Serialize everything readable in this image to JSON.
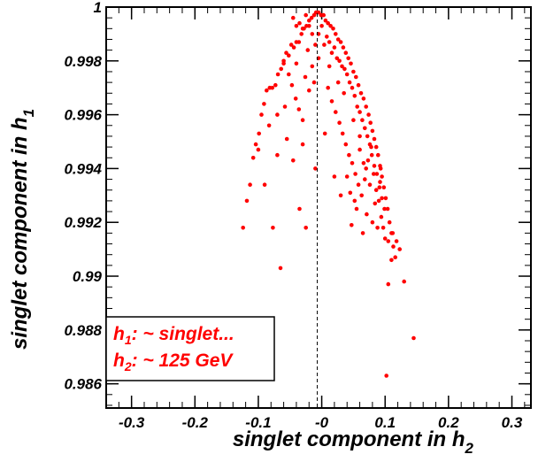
{
  "chart_data": {
    "type": "scatter",
    "xlabel": "singlet component in h",
    "xlabel_sub": "2",
    "ylabel": "singlet component in h",
    "ylabel_sub": "1",
    "xlim": [
      -0.34,
      0.33
    ],
    "ylim": [
      0.9851,
      1.0
    ],
    "xticks": [
      {
        "value": -0.3,
        "label": "-0.3"
      },
      {
        "value": -0.2,
        "label": "-0.2"
      },
      {
        "value": -0.1,
        "label": "-0.1"
      },
      {
        "value": -0.0,
        "label": "-0"
      },
      {
        "value": 0.1,
        "label": "0.1"
      },
      {
        "value": 0.2,
        "label": "0.2"
      },
      {
        "value": 0.3,
        "label": "0.3"
      }
    ],
    "yticks": [
      {
        "value": 0.986,
        "label": "0.986"
      },
      {
        "value": 0.988,
        "label": "0.988"
      },
      {
        "value": 0.99,
        "label": "0.99"
      },
      {
        "value": 0.992,
        "label": "0.992"
      },
      {
        "value": 0.994,
        "label": "0.994"
      },
      {
        "value": 0.996,
        "label": "0.996"
      },
      {
        "value": 0.998,
        "label": "0.998"
      },
      {
        "value": 1.0,
        "label": "1"
      }
    ],
    "reference_line": {
      "x": -0.007,
      "style": "dashed"
    },
    "marker_color": "#ff0000",
    "legend": {
      "placement": "bottom-left",
      "entries": [
        {
          "label": "h",
          "sub": "1",
          "text": ": ~ singlet..."
        },
        {
          "label": "h",
          "sub": "2",
          "text": ": ~ 125 GeV"
        }
      ]
    },
    "points": [
      [
        -0.124,
        0.9918
      ],
      [
        -0.118,
        0.9928
      ],
      [
        -0.113,
        0.9934
      ],
      [
        -0.108,
        0.9944
      ],
      [
        -0.104,
        0.9949
      ],
      [
        -0.099,
        0.9953
      ],
      [
        -0.095,
        0.996
      ],
      [
        -0.091,
        0.9964
      ],
      [
        -0.087,
        0.9969
      ],
      [
        -0.082,
        0.997
      ],
      [
        -0.078,
        0.997
      ],
      [
        -0.073,
        0.9971
      ],
      [
        -0.069,
        0.9975
      ],
      [
        -0.064,
        0.9977
      ],
      [
        -0.06,
        0.998
      ],
      [
        -0.056,
        0.9983
      ],
      [
        -0.052,
        0.9982
      ],
      [
        -0.048,
        0.9986
      ],
      [
        -0.044,
        0.9985
      ],
      [
        -0.04,
        0.9987
      ],
      [
        -0.036,
        0.9987
      ],
      [
        -0.032,
        0.999
      ],
      [
        -0.028,
        0.9992
      ],
      [
        -0.024,
        0.9993
      ],
      [
        -0.02,
        0.9995
      ],
      [
        -0.016,
        0.9996
      ],
      [
        -0.012,
        0.9997
      ],
      [
        -0.009,
        0.9998
      ],
      [
        -0.005,
        0.9998
      ],
      [
        -0.001,
        0.9997
      ],
      [
        0.003,
        0.9997
      ],
      [
        0.006,
        0.9995
      ],
      [
        0.01,
        0.9994
      ],
      [
        0.014,
        0.9993
      ],
      [
        0.018,
        0.9992
      ],
      [
        0.022,
        0.999
      ],
      [
        0.026,
        0.9988
      ],
      [
        0.03,
        0.9987
      ],
      [
        0.034,
        0.9985
      ],
      [
        0.038,
        0.9983
      ],
      [
        0.042,
        0.9981
      ],
      [
        0.046,
        0.9979
      ],
      [
        0.05,
        0.9976
      ],
      [
        0.054,
        0.9974
      ],
      [
        0.058,
        0.9971
      ],
      [
        0.062,
        0.9968
      ],
      [
        0.066,
        0.9966
      ],
      [
        0.07,
        0.9963
      ],
      [
        0.074,
        0.996
      ],
      [
        0.077,
        0.9957
      ],
      [
        0.08,
        0.9954
      ],
      [
        0.083,
        0.9951
      ],
      [
        0.086,
        0.9948
      ],
      [
        0.089,
        0.9945
      ],
      [
        0.092,
        0.9941
      ],
      [
        0.095,
        0.9937
      ],
      [
        0.098,
        0.9933
      ],
      [
        0.101,
        0.9929
      ],
      [
        0.104,
        0.9925
      ],
      [
        0.107,
        0.992
      ],
      [
        0.11,
        0.9916
      ],
      [
        0.113,
        0.9911
      ],
      [
        0.116,
        0.9907
      ],
      [
        -0.045,
        0.9996
      ],
      [
        -0.04,
        0.9993
      ],
      [
        -0.035,
        0.9994
      ],
      [
        -0.03,
        0.9992
      ],
      [
        -0.025,
        0.9997
      ],
      [
        -0.02,
        0.9993
      ],
      [
        -0.015,
        0.999
      ],
      [
        -0.01,
        0.9986
      ],
      [
        -0.005,
        0.999
      ],
      [
        0.0,
        0.9993
      ],
      [
        0.004,
        0.9986
      ],
      [
        0.008,
        0.9989
      ],
      [
        0.012,
        0.9987
      ],
      [
        0.016,
        0.9983
      ],
      [
        0.02,
        0.9985
      ],
      [
        0.024,
        0.9981
      ],
      [
        0.028,
        0.998
      ],
      [
        0.032,
        0.9978
      ],
      [
        0.036,
        0.9977
      ],
      [
        0.04,
        0.9975
      ],
      [
        0.044,
        0.9972
      ],
      [
        0.048,
        0.997
      ],
      [
        0.052,
        0.9967
      ],
      [
        0.056,
        0.9963
      ],
      [
        0.06,
        0.9961
      ],
      [
        0.064,
        0.9958
      ],
      [
        0.068,
        0.9955
      ],
      [
        0.072,
        0.9952
      ],
      [
        0.076,
        0.9949
      ],
      [
        0.079,
        0.9945
      ],
      [
        0.083,
        0.9941
      ],
      [
        0.087,
        0.9938
      ],
      [
        0.091,
        0.9933
      ],
      [
        0.095,
        0.9929
      ],
      [
        0.099,
        0.9925
      ],
      [
        -0.06,
        0.9979
      ],
      [
        -0.052,
        0.9975
      ],
      [
        -0.047,
        0.9971
      ],
      [
        -0.041,
        0.9966
      ],
      [
        -0.036,
        0.9962
      ],
      [
        -0.03,
        0.9958
      ],
      [
        -0.026,
        0.9974
      ],
      [
        -0.02,
        0.9969
      ],
      [
        -0.015,
        0.9978
      ],
      [
        -0.012,
        0.9972
      ],
      [
        0.01,
        0.997
      ],
      [
        0.016,
        0.9965
      ],
      [
        0.022,
        0.9961
      ],
      [
        0.028,
        0.9957
      ],
      [
        0.033,
        0.9953
      ],
      [
        0.038,
        0.9949
      ],
      [
        0.043,
        0.9945
      ],
      [
        0.048,
        0.9942
      ],
      [
        0.053,
        0.9938
      ],
      [
        0.058,
        0.9934
      ],
      [
        0.063,
        0.993
      ],
      [
        0.068,
        0.9936
      ],
      [
        0.073,
        0.9943
      ],
      [
        0.078,
        0.9948
      ],
      [
        0.082,
        0.9938
      ],
      [
        0.086,
        0.9932
      ],
      [
        0.09,
        0.9928
      ],
      [
        0.094,
        0.9922
      ],
      [
        0.097,
        0.9918
      ],
      [
        0.1,
        0.9914
      ],
      [
        -0.07,
        0.996
      ],
      [
        -0.055,
        0.9951
      ],
      [
        -0.045,
        0.9943
      ],
      [
        -0.03,
        0.9949
      ],
      [
        -0.035,
        0.9925
      ],
      [
        -0.01,
        0.994
      ],
      [
        0.005,
        0.9953
      ],
      [
        0.02,
        0.9937
      ],
      [
        0.04,
        0.9937
      ],
      [
        0.045,
        0.9931
      ],
      [
        0.052,
        0.9928
      ],
      [
        0.06,
        0.9947
      ],
      [
        0.066,
        0.9942
      ],
      [
        0.084,
        0.9927
      ],
      [
        0.092,
        0.9935
      ],
      [
        0.105,
        0.9913
      ],
      [
        0.112,
        0.9916
      ],
      [
        0.118,
        0.9913
      ],
      [
        0.123,
        0.991
      ],
      [
        0.13,
        0.9898
      ],
      [
        -0.077,
        0.9918
      ],
      [
        -0.025,
        0.9918
      ],
      [
        -0.065,
        0.9903
      ],
      [
        0.065,
        0.9916
      ],
      [
        0.105,
        0.9897
      ],
      [
        0.102,
        0.9863
      ],
      [
        0.145,
        0.9877
      ],
      [
        0.055,
        0.9925
      ],
      [
        0.03,
        0.993
      ],
      [
        0.047,
        0.9919
      ],
      [
        0.071,
        0.9923
      ],
      [
        0.08,
        0.992
      ],
      [
        0.088,
        0.9918
      ],
      [
        0.11,
        0.9906
      ],
      [
        -0.1,
        0.9947
      ],
      [
        -0.09,
        0.9934
      ],
      [
        -0.083,
        0.9956
      ],
      [
        -0.07,
        0.9945
      ],
      [
        -0.058,
        0.9963
      ],
      [
        -0.04,
        0.9979
      ],
      [
        -0.022,
        0.9984
      ],
      [
        -0.005,
        0.9981
      ],
      [
        0.012,
        0.9978
      ],
      [
        0.026,
        0.9972
      ],
      [
        0.035,
        0.9968
      ],
      [
        0.05,
        0.9958
      ],
      [
        0.06,
        0.9952
      ],
      [
        0.07,
        0.994
      ],
      [
        0.076,
        0.9934
      ],
      [
        0.093,
        0.994
      ]
    ]
  }
}
